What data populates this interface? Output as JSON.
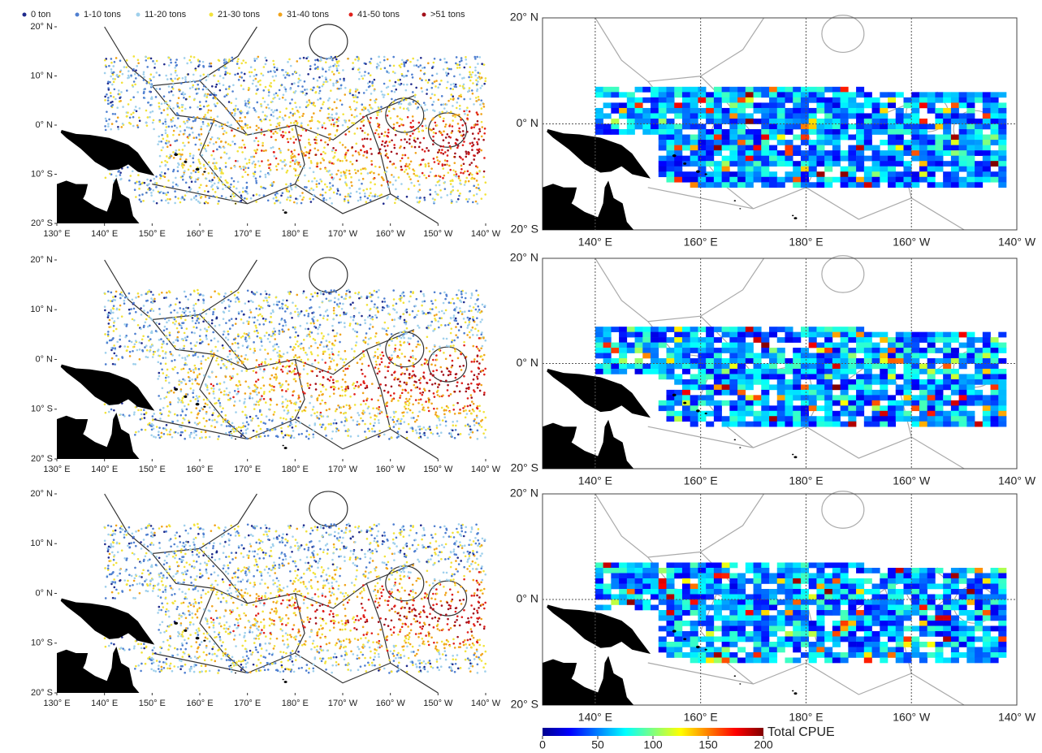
{
  "legend": [
    {
      "label": "0 ton",
      "color": "#1f2a8c"
    },
    {
      "label": "1-10 tons",
      "color": "#4f7fd0"
    },
    {
      "label": "11-20 tons",
      "color": "#9fd0ec"
    },
    {
      "label": "21-30 tons",
      "color": "#f2e23a"
    },
    {
      "label": "31-40 tons",
      "color": "#f0a31a"
    },
    {
      "label": "41-50 tons",
      "color": "#e0201b"
    },
    {
      "label": ">51 tons",
      "color": "#a3101a"
    }
  ],
  "left_axes": {
    "y_labels": [
      "20° N",
      "10° N",
      "0° N",
      "10° S",
      "20° S"
    ],
    "x_labels": [
      "130° E",
      "140° E",
      "150° E",
      "160° E",
      "170° E",
      "180° E",
      "170° W",
      "160° W",
      "150° W",
      "140° W"
    ]
  },
  "right_axes": {
    "y_labels": [
      "20° N",
      "0° N",
      "20° S"
    ],
    "x_labels": [
      "140° E",
      "160° E",
      "180° E",
      "160° W",
      "140° W"
    ]
  },
  "colorbar": {
    "lim": [
      0,
      200
    ],
    "ticks": [
      0,
      50,
      100,
      150,
      200
    ],
    "label": "Total CPUE"
  }
}
